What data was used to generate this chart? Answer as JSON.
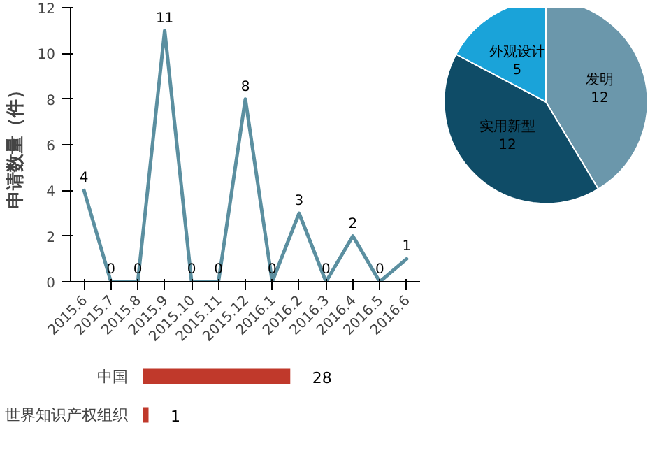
{
  "chart_data": [
    {
      "type": "line",
      "ylabel": "申请数量（件）",
      "categories": [
        "2015.6",
        "2015.7",
        "2015.8",
        "2015.9",
        "2015.10",
        "2015.11",
        "2015.12",
        "2016.1",
        "2016.2",
        "2016.3",
        "2016.4",
        "2016.5",
        "2016.6"
      ],
      "series": [
        {
          "color": "#5b8fa0",
          "values": [
            4,
            0,
            0,
            11,
            0,
            0,
            8,
            0,
            3,
            0,
            2,
            0,
            1
          ]
        }
      ],
      "ylim": [
        0,
        12
      ],
      "yticks": [
        0,
        2,
        4,
        6,
        8,
        10,
        12
      ],
      "data_labels": true,
      "grid": false,
      "marker": "none"
    },
    {
      "type": "pie",
      "categories": [
        "发明",
        "实用新型",
        "外观设计"
      ],
      "values": [
        12,
        12,
        5
      ],
      "colors": [
        "#6b97ab",
        "#0f4c67",
        "#1aa3d9"
      ],
      "data_labels": true
    },
    {
      "type": "bar",
      "orientation": "horizontal",
      "categories": [
        "中国",
        "世界知识产权组织"
      ],
      "values": [
        28,
        1
      ],
      "color": "#c0392b",
      "data_labels": true
    }
  ]
}
